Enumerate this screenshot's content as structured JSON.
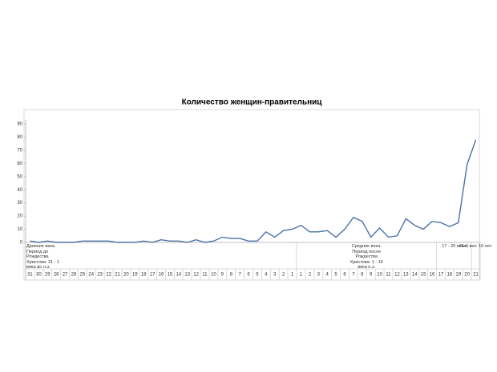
{
  "chart_data": {
    "type": "line",
    "title": "Количество женщин-правительниц",
    "categories": [
      "31",
      "30",
      "29",
      "28",
      "27",
      "26",
      "25",
      "24",
      "23",
      "22",
      "21",
      "20",
      "19",
      "18",
      "17",
      "16",
      "15",
      "14",
      "13",
      "12",
      "11",
      "10",
      "9",
      "8",
      "7",
      "6",
      "5",
      "4",
      "3",
      "2",
      "1",
      "1",
      "2",
      "3",
      "4",
      "5",
      "6",
      "7",
      "8",
      "9",
      "10",
      "11",
      "12",
      "13",
      "14",
      "15",
      "16",
      "17",
      "18",
      "19",
      "20",
      "21"
    ],
    "category_groups": [
      "Древние века. Период до Рождества Христова: 31 - 1 века до н.э.",
      "Средние века. Период после Рождества Христова: 1 - 16 века н.э.",
      "17 - 20 века",
      "21-й век: 16 лет."
    ],
    "series": [
      {
        "name": "Количество женщин-правительниц",
        "color": "#4a72a8",
        "values": [
          1,
          0,
          1,
          0,
          0,
          0,
          1,
          1,
          1,
          1,
          0,
          0,
          0,
          1,
          0,
          2,
          1,
          1,
          0,
          2,
          0,
          1,
          4,
          3,
          3,
          1,
          1,
          8,
          4,
          9,
          10,
          13,
          8,
          8,
          9,
          4,
          10,
          19,
          16,
          4,
          11,
          4,
          5,
          18,
          13,
          10,
          16,
          15,
          12,
          15,
          59,
          78
        ]
      }
    ],
    "ylim": [
      0,
      90
    ],
    "yticks": [
      0,
      10,
      20,
      30,
      40,
      50,
      60,
      70,
      80,
      90
    ],
    "grid": false
  }
}
